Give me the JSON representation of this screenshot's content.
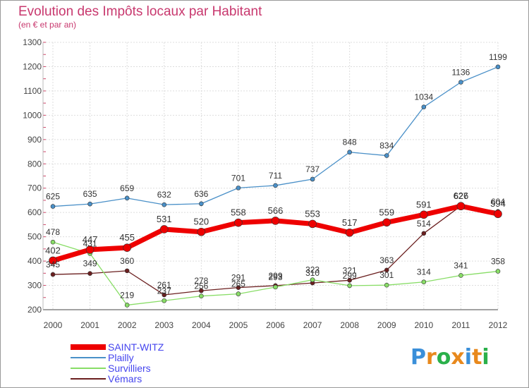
{
  "chart_data": {
    "type": "line",
    "title": "Evolution des Impôts locaux par Habitant",
    "subtitle": "(en € et par an)",
    "xlabel": "",
    "ylabel": "",
    "x": [
      "2000",
      "2001",
      "2002",
      "2003",
      "2004",
      "2005",
      "2006",
      "2007",
      "2008",
      "2009",
      "2010",
      "2011",
      "2012"
    ],
    "ylim": [
      200,
      1300
    ],
    "yticks": [
      200,
      300,
      400,
      500,
      600,
      700,
      800,
      900,
      1000,
      1100,
      1200,
      1300
    ],
    "grid": true,
    "legend_position": "bottom-left",
    "series": [
      {
        "name": "Vémars",
        "color": "#6b1f1f",
        "values": [
          345,
          349,
          360,
          261,
          278,
          291,
          299,
          310,
          321,
          363,
          514,
          627,
          604
        ]
      },
      {
        "name": "Survilliers",
        "color": "#88dd66",
        "values": [
          478,
          431,
          219,
          237,
          256,
          265,
          293,
          323,
          299,
          301,
          314,
          341,
          358
        ]
      },
      {
        "name": "Plailly",
        "color": "#4a90c8",
        "values": [
          625,
          635,
          659,
          632,
          636,
          701,
          711,
          737,
          848,
          834,
          1034,
          1136,
          1199
        ]
      },
      {
        "name": "SAINT-WITZ",
        "color": "#ee0000",
        "values": [
          402,
          447,
          455,
          531,
          520,
          558,
          566,
          553,
          517,
          559,
          591,
          626,
          594
        ]
      }
    ],
    "legend_order": [
      "SAINT-WITZ",
      "Plailly",
      "Survilliers",
      "Vémars"
    ]
  },
  "colors": {
    "title": "#c8386e",
    "legend_text": "#4444ee",
    "axis": "#444444",
    "grid": "#dddddd",
    "frame": "#999999"
  },
  "logo": {
    "text": "Proxiti",
    "letter_colors": [
      "#3a8fd9",
      "#e8891d",
      "#2ab04a",
      "#e8891d",
      "#3a8fd9",
      "#e8891d",
      "#2ab04a"
    ]
  }
}
